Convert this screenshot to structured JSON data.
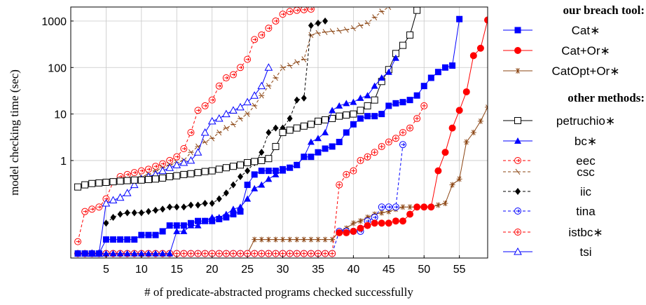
{
  "chart_data": {
    "type": "line",
    "xlabel": "# of predicate-abstracted programs checked successfully",
    "ylabel": "model checking time (sec)",
    "xscale": "linear",
    "yscale": "log",
    "xlim": [
      0,
      59
    ],
    "ylim": [
      0.008,
      2000
    ],
    "xticks": [
      5,
      10,
      15,
      20,
      25,
      30,
      35,
      40,
      45,
      50,
      55
    ],
    "yticks": [
      {
        "value": 1,
        "label": "1"
      },
      {
        "value": 10,
        "label": "10"
      },
      {
        "value": 100,
        "label": "100"
      },
      {
        "value": 1000,
        "label": "1000"
      }
    ],
    "grid": true,
    "legend_position": "right",
    "legend_groups": [
      {
        "heading": "our breach tool:",
        "series": [
          "Cat∗",
          "Cat+Or∗",
          "CatOpt+Or∗"
        ]
      },
      {
        "heading": "other methods:",
        "series": [
          "petruchio∗",
          "bc∗",
          "eec",
          "csc",
          "iic",
          "tina",
          "istbc∗",
          "tsi"
        ]
      }
    ],
    "series": [
      {
        "name": "Cat∗",
        "color": "#0000ff",
        "marker": "square-filled",
        "dash": "solid",
        "x": [
          1,
          2,
          3,
          4,
          5,
          6,
          7,
          8,
          9,
          10,
          11,
          12,
          13,
          14,
          15,
          16,
          17,
          18,
          19,
          20,
          21,
          22,
          23,
          24,
          25,
          26,
          27,
          28,
          29,
          30,
          31,
          32,
          33,
          34,
          35,
          36,
          37,
          38,
          39,
          40,
          41,
          42,
          43,
          44,
          45,
          46,
          47,
          48,
          49,
          50,
          51,
          52,
          53,
          54,
          55
        ],
        "y": [
          0.01,
          0.01,
          0.01,
          0.01,
          0.02,
          0.02,
          0.02,
          0.02,
          0.02,
          0.025,
          0.025,
          0.025,
          0.03,
          0.04,
          0.04,
          0.04,
          0.045,
          0.05,
          0.05,
          0.05,
          0.055,
          0.06,
          0.07,
          0.08,
          0.3,
          0.5,
          0.6,
          0.6,
          0.6,
          0.65,
          0.7,
          0.8,
          1.2,
          1.2,
          1.5,
          1.8,
          2.0,
          2.5,
          4,
          6,
          8,
          9,
          9,
          10,
          15,
          17,
          18,
          20,
          25,
          40,
          60,
          80,
          100,
          110,
          1100
        ]
      },
      {
        "name": "Cat+Or∗",
        "color": "#ff0000",
        "marker": "circle-filled",
        "dash": "solid",
        "x": [
          38,
          39,
          40,
          41,
          42,
          43,
          44,
          45,
          46,
          47,
          48,
          49,
          50,
          51,
          52,
          53,
          54,
          55,
          56,
          57,
          58,
          59
        ],
        "y": [
          0.028,
          0.028,
          0.03,
          0.035,
          0.04,
          0.045,
          0.045,
          0.045,
          0.05,
          0.05,
          0.07,
          0.1,
          0.1,
          0.1,
          0.6,
          1.5,
          5,
          12,
          30,
          180,
          260,
          1050
        ]
      },
      {
        "name": "CatOpt+Or∗",
        "color": "#8b4513",
        "marker": "star",
        "dash": "solid",
        "x": [
          1,
          2,
          3,
          4,
          5,
          6,
          7,
          8,
          9,
          10,
          11,
          12,
          13,
          14,
          15,
          16,
          17,
          18,
          19,
          20,
          21,
          22,
          23,
          24,
          25,
          26,
          27,
          28,
          29,
          30,
          31,
          32,
          33,
          34,
          35,
          36,
          37,
          38,
          39,
          40,
          41,
          42,
          43,
          44,
          45,
          46,
          47,
          48,
          49,
          50,
          51,
          52,
          53,
          54,
          55,
          56,
          57,
          58,
          59
        ],
        "y": [
          0.01,
          0.01,
          0.01,
          0.01,
          0.01,
          0.01,
          0.01,
          0.01,
          0.01,
          0.01,
          0.01,
          0.01,
          0.01,
          0.01,
          0.01,
          0.01,
          0.01,
          0.01,
          0.01,
          0.01,
          0.01,
          0.01,
          0.01,
          0.01,
          0.01,
          0.02,
          0.02,
          0.02,
          0.02,
          0.02,
          0.02,
          0.02,
          0.02,
          0.02,
          0.02,
          0.02,
          0.02,
          0.03,
          0.035,
          0.045,
          0.05,
          0.06,
          0.07,
          0.075,
          0.08,
          0.09,
          0.1,
          0.1,
          0.1,
          0.1,
          0.1,
          0.11,
          0.12,
          0.3,
          0.4,
          2.5,
          4,
          7,
          14
        ]
      },
      {
        "name": "petruchio∗",
        "color": "#000000",
        "marker": "square-open",
        "dash": "solid",
        "x": [
          1,
          2,
          3,
          4,
          5,
          6,
          7,
          8,
          9,
          10,
          11,
          12,
          13,
          14,
          15,
          16,
          17,
          18,
          19,
          20,
          21,
          22,
          23,
          24,
          25,
          26,
          27,
          28,
          29,
          30,
          31,
          32,
          33,
          34,
          35,
          36,
          37,
          38,
          39,
          40,
          41,
          42,
          43,
          44,
          45,
          46,
          47,
          48,
          49
        ],
        "y": [
          0.27,
          0.3,
          0.32,
          0.33,
          0.34,
          0.35,
          0.36,
          0.37,
          0.38,
          0.38,
          0.39,
          0.4,
          0.42,
          0.45,
          0.47,
          0.5,
          0.52,
          0.55,
          0.58,
          0.6,
          0.65,
          0.7,
          0.75,
          0.8,
          0.9,
          0.95,
          1.0,
          1.1,
          2.0,
          4.0,
          4.5,
          5,
          5.5,
          6,
          7,
          7.5,
          8,
          9,
          9.5,
          10,
          12,
          15,
          20,
          50,
          90,
          200,
          300,
          500,
          1700
        ]
      },
      {
        "name": "bc∗",
        "color": "#0000ff",
        "marker": "triangle-filled",
        "dash": "solid",
        "x": [
          1,
          2,
          3,
          4,
          5,
          6,
          7,
          8,
          9,
          10,
          11,
          12,
          13,
          14,
          15,
          16,
          17,
          18,
          19,
          20,
          21,
          22,
          23,
          24,
          25,
          26,
          27,
          28,
          29,
          30,
          31,
          32,
          33,
          34,
          35,
          36,
          37,
          38,
          39,
          40,
          41,
          42,
          43,
          44,
          45,
          46
        ],
        "y": [
          0.01,
          0.01,
          0.01,
          0.01,
          0.01,
          0.01,
          0.01,
          0.01,
          0.01,
          0.01,
          0.01,
          0.01,
          0.01,
          0.01,
          0.03,
          0.03,
          0.04,
          0.04,
          0.05,
          0.06,
          0.06,
          0.07,
          0.09,
          0.1,
          0.15,
          0.25,
          0.3,
          0.4,
          0.5,
          0.6,
          0.7,
          0.8,
          1.2,
          2.5,
          3,
          4,
          12,
          15,
          17,
          18,
          22,
          25,
          40,
          60,
          80,
          160
        ]
      },
      {
        "name": "eec",
        "color": "#ff0000",
        "marker": "circle-arrow",
        "dash": "dashed",
        "x": [
          1,
          2,
          3,
          4,
          5,
          6,
          7,
          8,
          9,
          10,
          11,
          12,
          13,
          14,
          15,
          16,
          17,
          18,
          19,
          20,
          21,
          22,
          23,
          24,
          25,
          26,
          27,
          28,
          29,
          30,
          31,
          32,
          33,
          34
        ],
        "y": [
          0.018,
          0.08,
          0.09,
          0.1,
          0.15,
          0.35,
          0.45,
          0.5,
          0.55,
          0.6,
          0.65,
          0.75,
          0.85,
          1.0,
          1.2,
          1.8,
          4,
          12,
          15,
          20,
          40,
          60,
          70,
          100,
          150,
          400,
          500,
          700,
          1000,
          1400,
          1600,
          1700,
          1750,
          1800
        ]
      },
      {
        "name": "csc",
        "color": "#8b4513",
        "marker": "slash",
        "dash": "dashed",
        "x": [
          9,
          10,
          11,
          12,
          13,
          14,
          15,
          16,
          17,
          18,
          19,
          20,
          21,
          22,
          23,
          24,
          25,
          26,
          27,
          28,
          29,
          30,
          31,
          32,
          33,
          34,
          35,
          36,
          37,
          38,
          39,
          40,
          41,
          42,
          43,
          44,
          45
        ],
        "y": [
          0.4,
          0.45,
          0.5,
          0.6,
          0.7,
          0.8,
          0.9,
          1.0,
          1.5,
          2,
          2.5,
          3,
          4,
          5,
          6,
          8,
          10,
          15,
          25,
          40,
          60,
          100,
          110,
          130,
          150,
          500,
          550,
          580,
          600,
          620,
          650,
          700,
          800,
          900,
          1200,
          1600,
          2000
        ]
      },
      {
        "name": "iic",
        "color": "#000000",
        "marker": "diamond-filled",
        "dash": "dashed",
        "x": [
          5,
          6,
          7,
          8,
          9,
          10,
          11,
          12,
          13,
          14,
          15,
          16,
          17,
          18,
          19,
          20,
          21,
          22,
          23,
          24,
          25,
          26,
          27,
          28,
          29,
          30,
          31,
          32,
          33,
          34,
          35,
          36
        ],
        "y": [
          0.045,
          0.06,
          0.07,
          0.075,
          0.075,
          0.075,
          0.08,
          0.085,
          0.09,
          0.1,
          0.1,
          0.1,
          0.11,
          0.11,
          0.12,
          0.12,
          0.15,
          0.2,
          0.3,
          0.45,
          0.6,
          0.9,
          1.5,
          4,
          5,
          5,
          8,
          20,
          22,
          800,
          900,
          1000
        ]
      },
      {
        "name": "tina",
        "color": "#0000ff",
        "marker": "circle-arrow",
        "dash": "dashed",
        "x": [
          1,
          2,
          3,
          4,
          5,
          6,
          7,
          8,
          9,
          10,
          11,
          12,
          13,
          14,
          15,
          16,
          17,
          18,
          19,
          20,
          21,
          22,
          23,
          24,
          25,
          26,
          27,
          28,
          29,
          30,
          31,
          32,
          33,
          34,
          35,
          36,
          37,
          38,
          39,
          40,
          41,
          42,
          43,
          44,
          45,
          46,
          47
        ],
        "y": [
          0.01,
          0.01,
          0.01,
          0.01,
          0.01,
          0.01,
          0.01,
          0.01,
          0.01,
          0.01,
          0.01,
          0.01,
          0.01,
          0.01,
          0.01,
          0.01,
          0.01,
          0.01,
          0.01,
          0.01,
          0.01,
          0.01,
          0.01,
          0.01,
          0.01,
          0.01,
          0.01,
          0.01,
          0.01,
          0.01,
          0.01,
          0.01,
          0.01,
          0.01,
          0.01,
          0.01,
          0.01,
          0.03,
          0.03,
          0.03,
          0.03,
          0.05,
          0.06,
          0.1,
          0.1,
          0.1,
          2.2
        ]
      },
      {
        "name": "istbc∗",
        "color": "#ff0000",
        "marker": "circle-plus",
        "dash": "dashed",
        "x": [
          1,
          2,
          3,
          4,
          5,
          6,
          7,
          8,
          9,
          10,
          11,
          12,
          13,
          14,
          15,
          16,
          17,
          18,
          19,
          20,
          21,
          22,
          23,
          24,
          25,
          26,
          27,
          28,
          29,
          30,
          31,
          32,
          33,
          34,
          35,
          36,
          37,
          38,
          39,
          40,
          41,
          42,
          43,
          44,
          45,
          46,
          47,
          48,
          49,
          50
        ],
        "y": [
          0.01,
          0.01,
          0.01,
          0.01,
          0.01,
          0.01,
          0.01,
          0.01,
          0.01,
          0.01,
          0.01,
          0.01,
          0.01,
          0.01,
          0.01,
          0.01,
          0.01,
          0.01,
          0.01,
          0.01,
          0.01,
          0.01,
          0.01,
          0.01,
          0.01,
          0.01,
          0.01,
          0.01,
          0.01,
          0.01,
          0.01,
          0.01,
          0.01,
          0.01,
          0.01,
          0.01,
          0.01,
          0.3,
          0.5,
          0.6,
          1.0,
          1.2,
          1.5,
          2,
          2.5,
          3,
          4,
          5,
          8,
          15
        ]
      },
      {
        "name": "tsi",
        "color": "#0000ff",
        "marker": "triangle-open",
        "dash": "solid",
        "x": [
          3,
          4,
          5,
          6,
          7,
          8,
          9,
          10,
          11,
          12,
          13,
          14,
          15,
          16,
          17,
          18,
          19,
          20,
          21,
          22,
          23,
          24,
          25,
          26,
          27,
          28
        ],
        "y": [
          0.01,
          0.01,
          0.12,
          0.14,
          0.16,
          0.2,
          0.3,
          0.4,
          0.45,
          0.5,
          0.6,
          0.7,
          0.8,
          0.9,
          1.0,
          1.5,
          4,
          7,
          8,
          10,
          12,
          14,
          18,
          25,
          40,
          100
        ]
      }
    ]
  }
}
